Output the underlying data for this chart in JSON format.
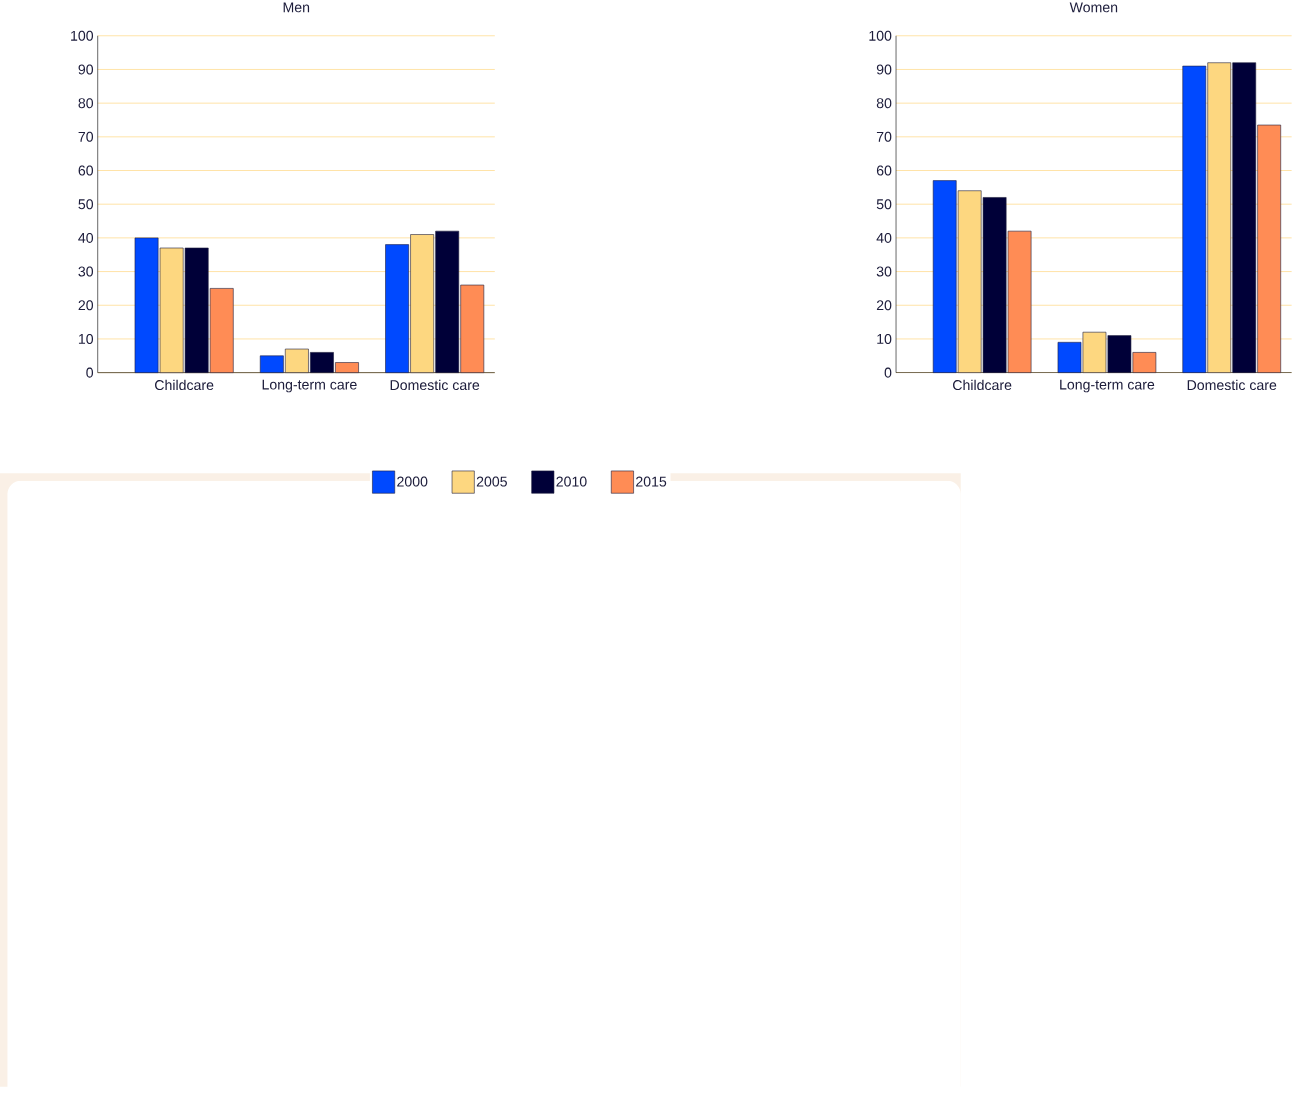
{
  "chart_data": [
    {
      "type": "bar",
      "title": "Men",
      "categories": [
        "Childcare",
        "Long-term care",
        "Domestic care"
      ],
      "ylim": [
        0,
        100
      ],
      "yticks": [
        0,
        10,
        20,
        30,
        40,
        50,
        60,
        70,
        80,
        90,
        100
      ],
      "grid": "y",
      "legend": "bottom",
      "series": [
        {
          "name": "2000",
          "color": "#0049ff",
          "values": [
            40,
            5,
            38
          ]
        },
        {
          "name": "2005",
          "color": "#fdd780",
          "values": [
            37,
            7,
            41
          ]
        },
        {
          "name": "2010",
          "color": "#000038",
          "values": [
            37,
            6,
            42
          ]
        },
        {
          "name": "2015",
          "color": "#ff8c55",
          "values": [
            25,
            3,
            26
          ]
        }
      ]
    },
    {
      "type": "bar",
      "title": "Women",
      "categories": [
        "Childcare",
        "Long-term care",
        "Domestic care"
      ],
      "ylim": [
        0,
        100
      ],
      "yticks": [
        0,
        10,
        20,
        30,
        40,
        50,
        60,
        70,
        80,
        90,
        100
      ],
      "grid": "y",
      "series": [
        {
          "color": "#0049ff",
          "values": [
            57,
            9,
            91
          ]
        },
        {
          "color": "#fdd780",
          "values": [
            54,
            12,
            92
          ]
        },
        {
          "color": "#000038",
          "values": [
            52,
            11,
            92
          ]
        },
        {
          "color": "#ff8c55",
          "values": [
            42,
            6,
            73.5
          ]
        }
      ]
    }
  ]
}
